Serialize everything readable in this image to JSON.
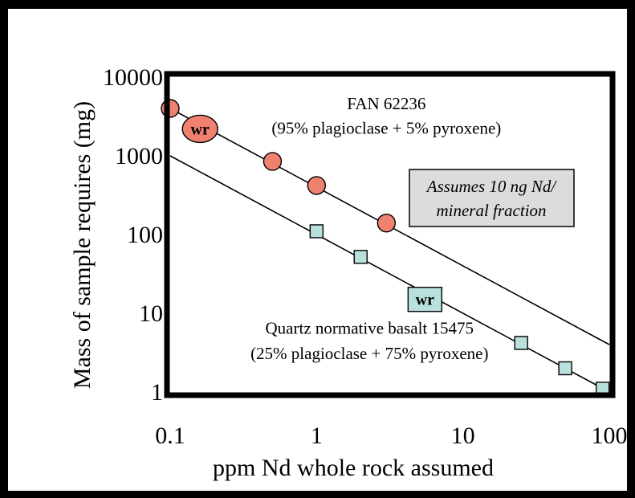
{
  "chart_data": {
    "type": "scatter",
    "x_scale": "log",
    "y_scale": "log",
    "xlim": [
      0.1,
      100
    ],
    "ylim": [
      1,
      10000
    ],
    "xlabel": "ppm Nd whole rock assumed",
    "ylabel": "Mass of sample requires (mg)",
    "x_ticks": [
      {
        "value": 0.1,
        "label": "0.1"
      },
      {
        "value": 1,
        "label": "1"
      },
      {
        "value": 10,
        "label": "10"
      },
      {
        "value": 100,
        "label": "100"
      }
    ],
    "y_ticks": [
      {
        "value": 1,
        "label": "1"
      },
      {
        "value": 10,
        "label": "10"
      },
      {
        "value": 100,
        "label": "100"
      },
      {
        "value": 1000,
        "label": "1000"
      },
      {
        "value": 10000,
        "label": "10000"
      }
    ],
    "grid": false,
    "lines": [
      {
        "x": [
          0.1,
          100
        ],
        "y": [
          4000,
          4
        ],
        "color": "#000000"
      },
      {
        "x": [
          0.1,
          100
        ],
        "y": [
          1000,
          1
        ],
        "color": "#000000"
      }
    ],
    "series": [
      {
        "marker": "circle",
        "color": "#f08070",
        "x": [
          0.1,
          0.5,
          1,
          3
        ],
        "y": [
          4000,
          850,
          420,
          140
        ],
        "wr_point": {
          "x": 0.16,
          "y": 2200,
          "label": "wr"
        }
      },
      {
        "marker": "square",
        "color": "#b8e0dc",
        "x": [
          1,
          2,
          25,
          50,
          90
        ],
        "y": [
          110,
          52,
          4.2,
          2.0,
          1.1
        ],
        "wr_point": {
          "x": 5.5,
          "y": 15,
          "label": "wr"
        }
      }
    ],
    "annotations": [
      {
        "text": "FAN 62236",
        "x": 3.0,
        "y": 4600
      },
      {
        "text": "(95% plagioclase + 5% pyroxene)",
        "x": 3.0,
        "y": 2250
      },
      {
        "text": "Quartz normative basalt 15475",
        "x": 2.3,
        "y": 6.5
      },
      {
        "text": "(25% plagioclase + 75% pyroxene)",
        "x": 2.3,
        "y": 3.1
      }
    ],
    "note_box": {
      "lines": [
        "Assumes 10 ng Nd/",
        "mineral fraction"
      ],
      "fill": "#dcdcdc"
    }
  }
}
